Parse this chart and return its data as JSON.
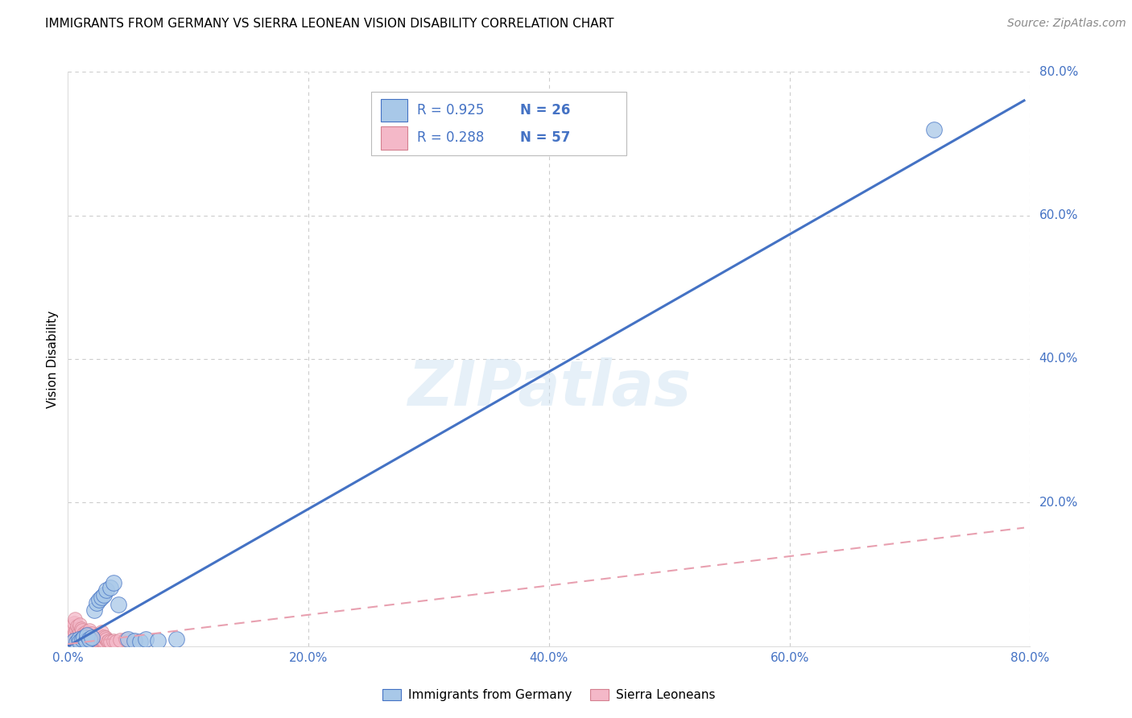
{
  "title": "IMMIGRANTS FROM GERMANY VS SIERRA LEONEAN VISION DISABILITY CORRELATION CHART",
  "source": "Source: ZipAtlas.com",
  "ylabel": "Vision Disability",
  "xlim": [
    0.0,
    0.8
  ],
  "ylim": [
    0.0,
    0.8
  ],
  "xticks": [
    0.0,
    0.2,
    0.4,
    0.6,
    0.8
  ],
  "yticks": [
    0.0,
    0.2,
    0.4,
    0.6,
    0.8
  ],
  "xtick_labels": [
    "0.0%",
    "20.0%",
    "40.0%",
    "60.0%",
    "80.0%"
  ],
  "ytick_labels": [
    "",
    "20.0%",
    "40.0%",
    "60.0%",
    "80.0%"
  ],
  "blue_R": 0.925,
  "blue_N": 26,
  "pink_R": 0.288,
  "pink_N": 57,
  "blue_color": "#a8c8e8",
  "pink_color": "#f4b8c8",
  "blue_line_color": "#4472c4",
  "pink_line_color": "#e8a0b0",
  "blue_edge_color": "#4472c4",
  "pink_edge_color": "#d48090",
  "tick_color": "#4472c4",
  "grid_color": "#cccccc",
  "watermark": "ZIPatlas",
  "blue_scatter_x": [
    0.005,
    0.007,
    0.009,
    0.01,
    0.012,
    0.013,
    0.015,
    0.016,
    0.018,
    0.02,
    0.022,
    0.024,
    0.026,
    0.028,
    0.03,
    0.032,
    0.035,
    0.038,
    0.042,
    0.05,
    0.055,
    0.06,
    0.065,
    0.075,
    0.09,
    0.72
  ],
  "blue_scatter_y": [
    0.008,
    0.005,
    0.01,
    0.006,
    0.01,
    0.012,
    0.008,
    0.015,
    0.01,
    0.012,
    0.05,
    0.06,
    0.065,
    0.068,
    0.072,
    0.078,
    0.082,
    0.088,
    0.058,
    0.01,
    0.008,
    0.006,
    0.01,
    0.008,
    0.01,
    0.72
  ],
  "pink_scatter_x": [
    0.002,
    0.003,
    0.003,
    0.004,
    0.004,
    0.005,
    0.005,
    0.006,
    0.006,
    0.007,
    0.007,
    0.008,
    0.008,
    0.009,
    0.009,
    0.01,
    0.01,
    0.01,
    0.011,
    0.011,
    0.012,
    0.012,
    0.013,
    0.013,
    0.014,
    0.014,
    0.015,
    0.015,
    0.016,
    0.017,
    0.017,
    0.018,
    0.019,
    0.02,
    0.02,
    0.021,
    0.022,
    0.023,
    0.024,
    0.025,
    0.026,
    0.027,
    0.028,
    0.028,
    0.029,
    0.03,
    0.03,
    0.031,
    0.032,
    0.033,
    0.034,
    0.035,
    0.038,
    0.04,
    0.043,
    0.048,
    0.055
  ],
  "pink_scatter_y": [
    0.012,
    0.018,
    0.025,
    0.01,
    0.028,
    0.015,
    0.032,
    0.02,
    0.038,
    0.012,
    0.022,
    0.016,
    0.028,
    0.014,
    0.025,
    0.012,
    0.02,
    0.03,
    0.016,
    0.025,
    0.01,
    0.022,
    0.012,
    0.018,
    0.01,
    0.016,
    0.02,
    0.013,
    0.018,
    0.01,
    0.015,
    0.022,
    0.012,
    0.01,
    0.018,
    0.012,
    0.01,
    0.007,
    0.015,
    0.009,
    0.015,
    0.009,
    0.01,
    0.02,
    0.007,
    0.008,
    0.013,
    0.012,
    0.01,
    0.007,
    0.008,
    0.007,
    0.008,
    0.007,
    0.009,
    0.01,
    0.008
  ],
  "blue_trendline_x": [
    0.0,
    0.795
  ],
  "blue_trendline_y": [
    0.0,
    0.76
  ],
  "pink_trendline_x": [
    0.0,
    0.795
  ],
  "pink_trendline_y": [
    0.003,
    0.165
  ],
  "legend_blue_label": "R = 0.925   N = 26",
  "legend_pink_label": "R = 0.288   N = 57",
  "bottom_legend_blue": "Immigrants from Germany",
  "bottom_legend_pink": "Sierra Leoneans"
}
